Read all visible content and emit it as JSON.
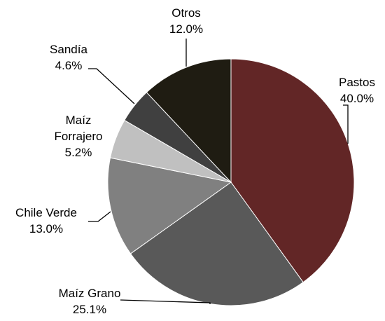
{
  "chart_data": {
    "type": "pie",
    "categories": [
      "Pastos",
      "Maíz Grano",
      "Chile Verde",
      "Maíz Forrajero",
      "Sandía",
      "Otros"
    ],
    "values": [
      40.0,
      25.1,
      13.0,
      5.2,
      4.6,
      12.0
    ],
    "value_labels": [
      "40.0%",
      "25.1%",
      "13.0%",
      "5.2%",
      "4.6%",
      "12.0%"
    ],
    "colors": [
      "#622626",
      "#595959",
      "#808080",
      "#c0c0c0",
      "#404040",
      "#1f1c12"
    ]
  }
}
